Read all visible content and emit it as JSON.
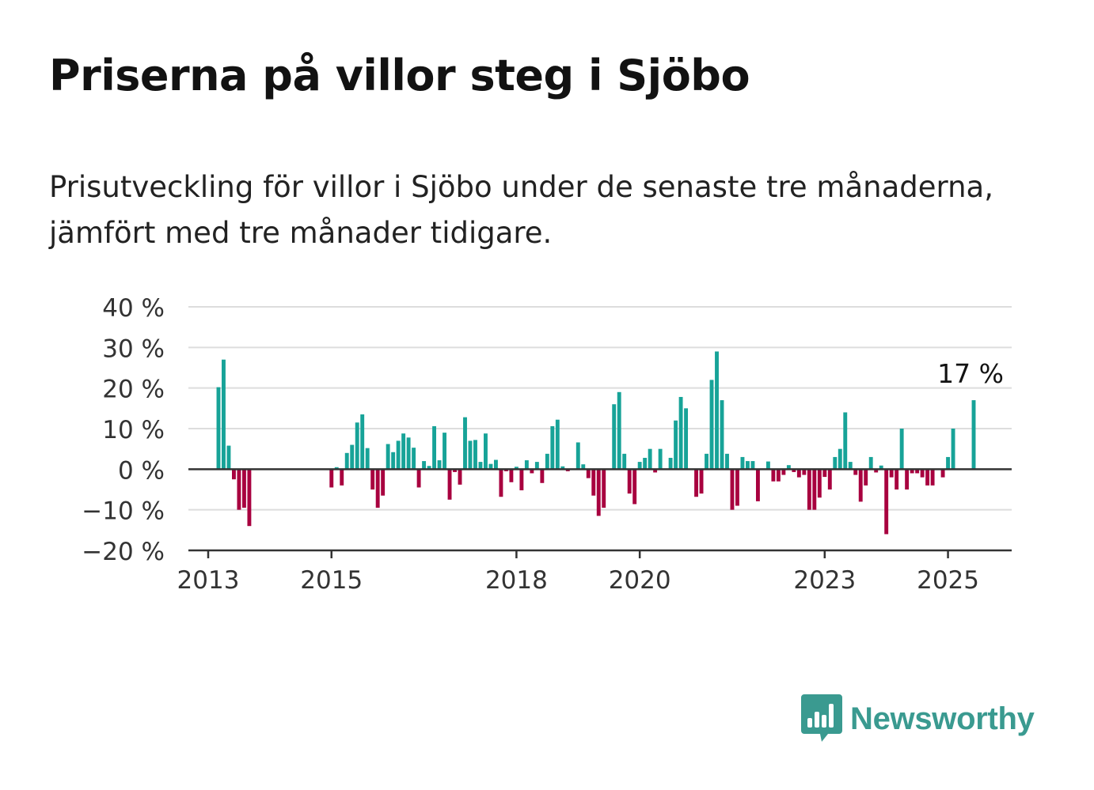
{
  "title": "Priserna på villor steg i Sjöbo",
  "subtitle": "Prisutveckling för villor i Sjöbo under de senaste tre månaderna, jämfört med tre månader tidigare.",
  "brand": {
    "name": "Newsworthy",
    "color": "#3a9a90",
    "icon": "bar-chart-speech-bubble-icon"
  },
  "colors": {
    "positive": "#17a398",
    "negative": "#a8003f",
    "grid": "#dddddd",
    "axis": "#333333"
  },
  "chart_data": {
    "type": "bar",
    "x_unit": "month",
    "x_start": "2013-01",
    "ylim": [
      -20,
      40
    ],
    "y_ticks": [
      40,
      30,
      20,
      10,
      0,
      -10,
      -20
    ],
    "y_tick_labels": [
      "40 %",
      "30 %",
      "20 %",
      "10 %",
      "0 %",
      "−10 %",
      "−20 %"
    ],
    "x_ticks": [
      "2013-01",
      "2015-01",
      "2018-01",
      "2020-01",
      "2023-01",
      "2025-01"
    ],
    "x_tick_labels": [
      "2013",
      "2015",
      "2018",
      "2020",
      "2023",
      "2025"
    ],
    "grid": true,
    "annotation": {
      "month": "2025-06",
      "value": 17,
      "label": "17 %"
    },
    "points": [
      [
        "2013-03",
        20.2
      ],
      [
        "2013-04",
        27
      ],
      [
        "2013-05",
        5.8
      ],
      [
        "2013-06",
        -2.5
      ],
      [
        "2013-07",
        -10
      ],
      [
        "2013-08",
        -9.5
      ],
      [
        "2013-09",
        -14
      ],
      [
        "2015-01",
        -4.5
      ],
      [
        "2015-02",
        0.5
      ],
      [
        "2015-03",
        -4
      ],
      [
        "2015-04",
        4
      ],
      [
        "2015-05",
        6
      ],
      [
        "2015-06",
        11.5
      ],
      [
        "2015-07",
        13.5
      ],
      [
        "2015-08",
        5.2
      ],
      [
        "2015-09",
        -5
      ],
      [
        "2015-10",
        -9.5
      ],
      [
        "2015-11",
        -6.5
      ],
      [
        "2015-12",
        6.2
      ],
      [
        "2016-01",
        4.2
      ],
      [
        "2016-02",
        7
      ],
      [
        "2016-03",
        8.8
      ],
      [
        "2016-04",
        7.8
      ],
      [
        "2016-05",
        5.3
      ],
      [
        "2016-06",
        -4.5
      ],
      [
        "2016-07",
        2
      ],
      [
        "2016-08",
        0.8
      ],
      [
        "2016-09",
        10.6
      ],
      [
        "2016-10",
        2.2
      ],
      [
        "2016-11",
        9
      ],
      [
        "2016-12",
        -7.5
      ],
      [
        "2017-01",
        -0.7
      ],
      [
        "2017-02",
        -3.8
      ],
      [
        "2017-03",
        12.8
      ],
      [
        "2017-04",
        7
      ],
      [
        "2017-05",
        7.2
      ],
      [
        "2017-06",
        1.8
      ],
      [
        "2017-07",
        8.8
      ],
      [
        "2017-08",
        1.3
      ],
      [
        "2017-09",
        2.3
      ],
      [
        "2017-10",
        -6.8
      ],
      [
        "2017-11",
        -0.5
      ],
      [
        "2017-12",
        -3.2
      ],
      [
        "2018-01",
        0.6
      ],
      [
        "2018-02",
        -5.2
      ],
      [
        "2018-03",
        2.2
      ],
      [
        "2018-04",
        -1
      ],
      [
        "2018-05",
        1.8
      ],
      [
        "2018-06",
        -3.4
      ],
      [
        "2018-07",
        3.8
      ],
      [
        "2018-08",
        10.6
      ],
      [
        "2018-09",
        12.2
      ],
      [
        "2018-10",
        0.7
      ],
      [
        "2018-11",
        -0.5
      ],
      [
        "2019-01",
        6.6
      ],
      [
        "2019-02",
        1.2
      ],
      [
        "2019-03",
        -2.2
      ],
      [
        "2019-04",
        -6.5
      ],
      [
        "2019-05",
        -11.5
      ],
      [
        "2019-06",
        -9.5
      ],
      [
        "2019-08",
        16
      ],
      [
        "2019-09",
        19
      ],
      [
        "2019-10",
        3.8
      ],
      [
        "2019-11",
        -6
      ],
      [
        "2019-12",
        -8.6
      ],
      [
        "2020-01",
        1.8
      ],
      [
        "2020-02",
        2.8
      ],
      [
        "2020-03",
        5
      ],
      [
        "2020-04",
        -0.8
      ],
      [
        "2020-05",
        5
      ],
      [
        "2020-07",
        2.8
      ],
      [
        "2020-08",
        12
      ],
      [
        "2020-09",
        17.8
      ],
      [
        "2020-10",
        15
      ],
      [
        "2020-12",
        -6.8
      ],
      [
        "2021-01",
        -6
      ],
      [
        "2021-02",
        3.8
      ],
      [
        "2021-03",
        22
      ],
      [
        "2021-04",
        29
      ],
      [
        "2021-05",
        17
      ],
      [
        "2021-06",
        3.8
      ],
      [
        "2021-07",
        -10
      ],
      [
        "2021-08",
        -9
      ],
      [
        "2021-09",
        3
      ],
      [
        "2021-10",
        2
      ],
      [
        "2021-11",
        2
      ],
      [
        "2021-12",
        -7.9
      ],
      [
        "2022-02",
        1.9
      ],
      [
        "2022-03",
        -3
      ],
      [
        "2022-04",
        -3
      ],
      [
        "2022-05",
        -1.4
      ],
      [
        "2022-06",
        1
      ],
      [
        "2022-07",
        -0.7
      ],
      [
        "2022-08",
        -2
      ],
      [
        "2022-09",
        -1.4
      ],
      [
        "2022-10",
        -10
      ],
      [
        "2022-11",
        -10
      ],
      [
        "2022-12",
        -7
      ],
      [
        "2023-01",
        -1.9
      ],
      [
        "2023-02",
        -5
      ],
      [
        "2023-03",
        3
      ],
      [
        "2023-04",
        5
      ],
      [
        "2023-05",
        14
      ],
      [
        "2023-06",
        1.8
      ],
      [
        "2023-07",
        -1.4
      ],
      [
        "2023-08",
        -8
      ],
      [
        "2023-09",
        -4
      ],
      [
        "2023-10",
        3
      ],
      [
        "2023-11",
        -0.8
      ],
      [
        "2023-12",
        0.9
      ],
      [
        "2024-01",
        -16
      ],
      [
        "2024-02",
        -2
      ],
      [
        "2024-03",
        -5
      ],
      [
        "2024-04",
        10
      ],
      [
        "2024-05",
        -5
      ],
      [
        "2024-06",
        -1
      ],
      [
        "2024-07",
        -1
      ],
      [
        "2024-08",
        -2
      ],
      [
        "2024-09",
        -4
      ],
      [
        "2024-10",
        -4
      ],
      [
        "2024-12",
        -2
      ],
      [
        "2025-01",
        3
      ],
      [
        "2025-02",
        10
      ],
      [
        "2025-06",
        17
      ]
    ]
  }
}
